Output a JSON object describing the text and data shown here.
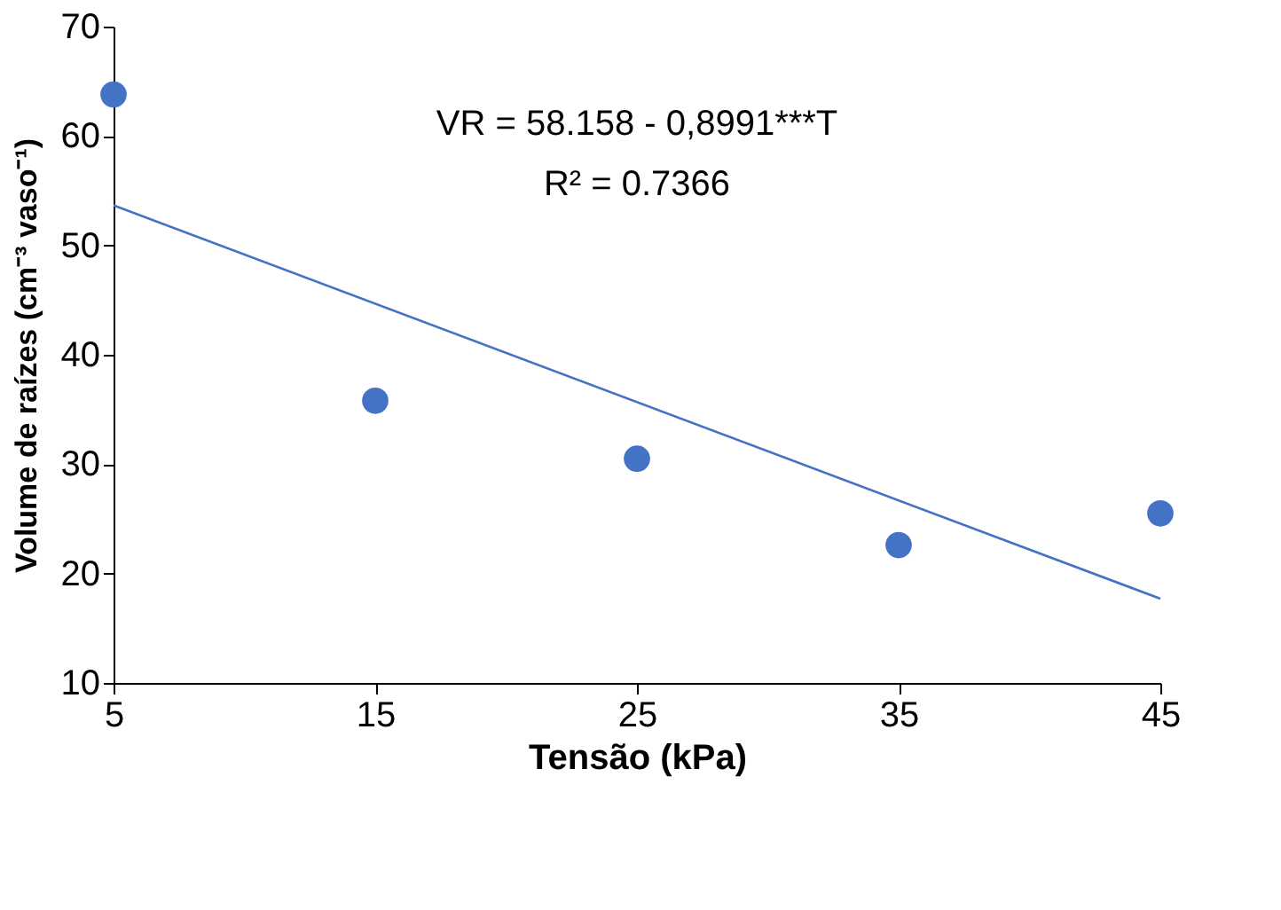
{
  "chart_data": {
    "type": "scatter",
    "xlabel": "Tensão (kPa)",
    "ylabel": "Volume de raízes (cm⁻³ vaso⁻¹)",
    "x": [
      5,
      15,
      25,
      35,
      45
    ],
    "series": [
      {
        "type": "scatter",
        "color": "#4472c4",
        "marker": "circle",
        "values": [
          63.8,
          35.8,
          30.5,
          22.6,
          25.5
        ]
      },
      {
        "type": "line",
        "color": "#4472c4",
        "line_style": "solid",
        "x": [
          5,
          45
        ],
        "values": [
          53.66,
          17.7
        ]
      }
    ],
    "xlim": [
      5,
      45
    ],
    "xticks": [
      5,
      15,
      25,
      35,
      45
    ],
    "ylim": [
      10,
      70
    ],
    "yticks": [
      10,
      20,
      30,
      40,
      50,
      60,
      70
    ],
    "grid": false,
    "annotations": [
      "VR = 58.158 - 0,8991***T",
      "R² = 0.7366"
    ]
  }
}
